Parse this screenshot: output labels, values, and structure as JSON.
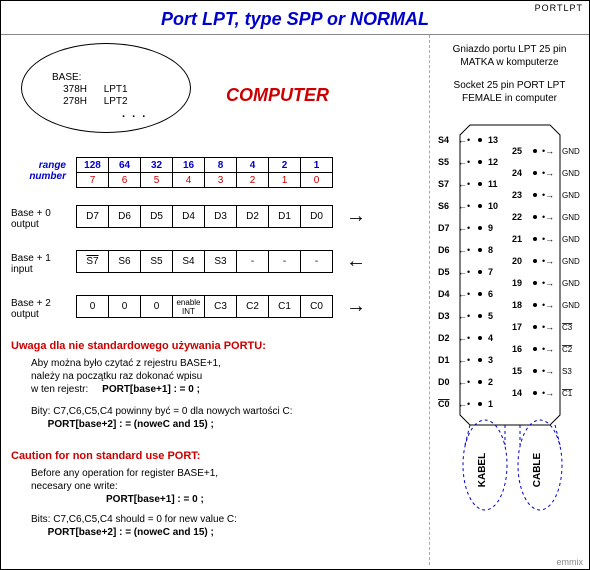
{
  "hdr": "PORTLPT",
  "title": "Port LPT,  type  SPP or NORMAL",
  "ellipse": {
    "base": "BASE:",
    "a1": "378H",
    "a2": "278H",
    "l1": "LPT1",
    "l2": "LPT2"
  },
  "computer": "COMPUTER",
  "rangeLabel": "range number",
  "rangeTop": [
    "128",
    "64",
    "32",
    "16",
    "8",
    "4",
    "2",
    "1"
  ],
  "rangeBot": [
    "7",
    "6",
    "5",
    "4",
    "3",
    "2",
    "1",
    "0"
  ],
  "reg0": {
    "lbl": "Base + 0 output",
    "cells": [
      "D7",
      "D6",
      "D5",
      "D4",
      "D3",
      "D2",
      "D1",
      "D0"
    ]
  },
  "reg1": {
    "lbl": "Base + 1 input",
    "cells": [
      "S7",
      "S6",
      "S5",
      "S4",
      "S3",
      "-",
      "-",
      "-"
    ]
  },
  "reg2": {
    "lbl": "Base + 2 output",
    "cells": [
      "0",
      "0",
      "0",
      "enable INT",
      "C3",
      "C2",
      "C1",
      "C0"
    ]
  },
  "warnPL": "Uwaga dla nie standardowego używania PORTU:",
  "notePL1": "Aby można było czytać z rejestru BASE+1,\nnależy na początku raz dokonać wpisu\nw  ten rejestr:",
  "codePL1": "PORT[base+1]  : = 0 ;",
  "notePL2": "Bity: C7,C6,C5,C4 powinny być = 0 dla nowych wartości C:",
  "codePL2": "PORT[base+2]  : = (noweC and 15) ;",
  "warnEN": "Caution for non standard use PORT:",
  "noteEN1": "Before any operation for register BASE+1,\nnecesary one write:",
  "codeEN1": "PORT[base+1]  : = 0 ;",
  "noteEN2": "Bits: C7,C6,C5,C4 should  = 0 for new value C:",
  "codeEN2": "PORT[base+2]  : = (noweC and 15) ;",
  "rightPL": "Gniazdo portu LPT 25 pin\nMATKA w komputerze",
  "rightEN": "Socket 25 pin PORT LPT\nFEMALE in computer",
  "kabel": "KABEL",
  "cable": "CABLE",
  "footer": "emmix",
  "conn": {
    "leftPins": [
      "S4",
      "S5",
      "S7",
      "S6",
      "D7",
      "D6",
      "D5",
      "D4",
      "D3",
      "D2",
      "D1",
      "D0",
      "C0"
    ],
    "leftNums": [
      "13",
      "12",
      "11",
      "10",
      "9",
      "8",
      "7",
      "6",
      "5",
      "4",
      "3",
      "2",
      "1"
    ],
    "rightNums": [
      "25",
      "24",
      "23",
      "22",
      "21",
      "20",
      "19",
      "18",
      "17",
      "16",
      "15",
      "14"
    ],
    "rightPins": [
      "GND",
      "GND",
      "GND",
      "GND",
      "GND",
      "GND",
      "GND",
      "GND",
      "C3",
      "C2",
      "S3",
      "C1"
    ]
  }
}
